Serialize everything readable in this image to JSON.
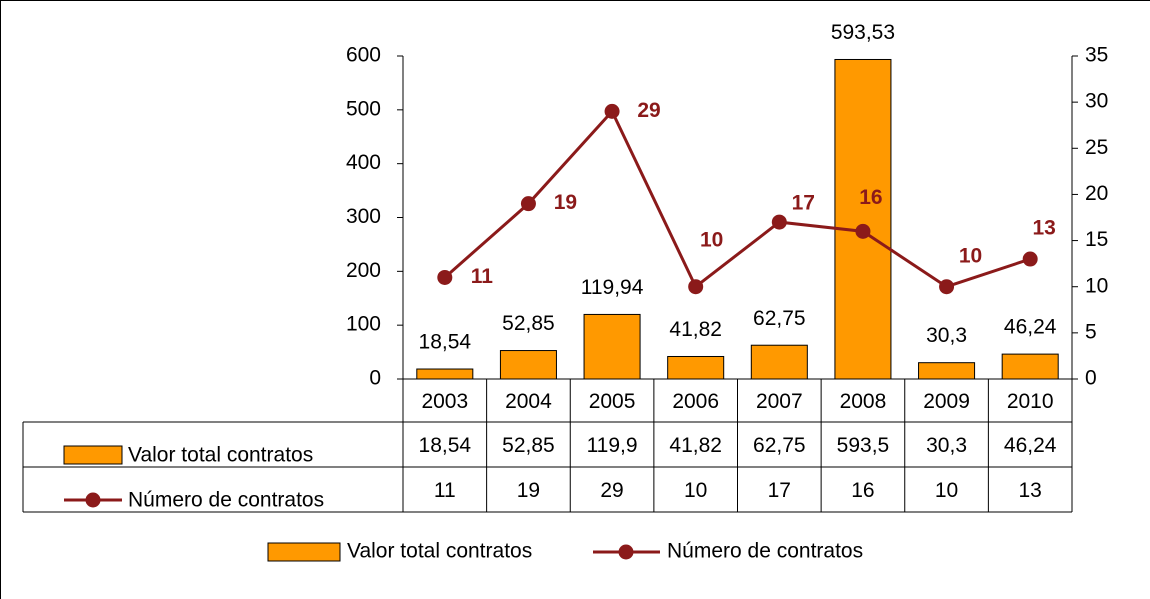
{
  "chart_data": {
    "type": "bar+line",
    "categories": [
      "2003",
      "2004",
      "2005",
      "2006",
      "2007",
      "2008",
      "2009",
      "2010"
    ],
    "series": [
      {
        "name": "Valor total contratos",
        "type": "bar",
        "color": "#ff9900",
        "values": [
          18.54,
          52.85,
          119.94,
          41.82,
          62.75,
          593.53,
          30.3,
          46.24
        ],
        "value_labels": [
          "18,54",
          "52,85",
          "119,94",
          "41,82",
          "62,75",
          "593,53",
          "30,3",
          "46,24"
        ],
        "table_labels": [
          "18,54",
          "52,85",
          "119,9",
          "41,82",
          "62,75",
          "593,5",
          "30,3",
          "46,24"
        ]
      },
      {
        "name": "Número de contratos",
        "type": "line",
        "axis": "y2",
        "color": "#8b1a1a",
        "values": [
          11,
          19,
          29,
          10,
          17,
          16,
          10,
          13
        ]
      }
    ],
    "ylim": [
      0,
      600
    ],
    "yticks": [
      0,
      100,
      200,
      300,
      400,
      500,
      600
    ],
    "y2lim": [
      0,
      35
    ],
    "y2ticks": [
      0,
      5,
      10,
      15,
      20,
      25,
      30,
      35
    ],
    "data_table": true,
    "legend": "bottom"
  }
}
